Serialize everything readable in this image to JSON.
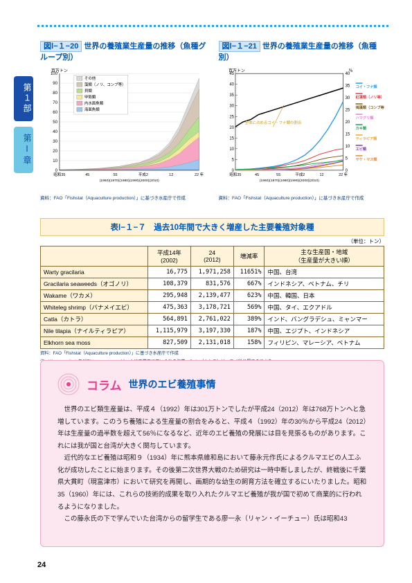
{
  "sideTabs": {
    "tab1": "第１部",
    "tab2": "第Ⅰ章"
  },
  "chart1": {
    "figNum": "図Ⅰ−１−20",
    "title": "世界の養殖業生産量の推移（魚種グループ別）",
    "yLabel": "百万トン",
    "yTicks": [
      "0",
      "10",
      "20",
      "30",
      "40",
      "50",
      "60",
      "70",
      "80",
      "90",
      "100"
    ],
    "xTicks": [
      "昭和35",
      "45",
      "55",
      "平成2",
      "12",
      "22 年"
    ],
    "xSub": "(1960)(1970)(1980)(1990)(2000)(2010)",
    "legend": [
      "その他",
      "藻類（ノリ、コンブ等）",
      "貝類",
      "甲殻類",
      "内水面魚類",
      "海面魚類"
    ],
    "legendColors": [
      "#d9d9d9",
      "#d6c6b5",
      "#b5e090",
      "#f9e89a",
      "#f6a6c2",
      "#9ec6f0"
    ],
    "series": [
      [
        0.5,
        0.7,
        1.0,
        1.5,
        2,
        3,
        4,
        6,
        8,
        12,
        18,
        28,
        45,
        70,
        95
      ],
      [
        0.5,
        0.7,
        1.0,
        1.5,
        2,
        3,
        4,
        6,
        8,
        11,
        16,
        25,
        40,
        62,
        84
      ],
      [
        0.4,
        0.6,
        0.8,
        1.2,
        1.6,
        2.3,
        3,
        4.5,
        6,
        8,
        12,
        18,
        28,
        42,
        55
      ],
      [
        0.3,
        0.5,
        0.7,
        1.0,
        1.3,
        1.8,
        2.4,
        3.5,
        4.5,
        6,
        9,
        14,
        22,
        32,
        40
      ],
      [
        0.3,
        0.45,
        0.6,
        0.9,
        1.2,
        1.6,
        2.1,
        3,
        3.8,
        5,
        7,
        11,
        17,
        26,
        34
      ],
      [
        0.1,
        0.15,
        0.2,
        0.3,
        0.4,
        0.55,
        0.7,
        1,
        1.3,
        1.7,
        2.4,
        3.5,
        5.5,
        8,
        11
      ]
    ],
    "src": "資料：FAO「Fishstat（Aquaculture production）」に基づき水産庁で作成"
  },
  "chart2": {
    "figNum": "図Ⅰ−１−21",
    "title": "世界の養殖業生産量の推移（魚種別）",
    "yLabel": "百万トン",
    "yRightLabel": "％",
    "yTicks": [
      "0",
      "5",
      "10",
      "15",
      "20",
      "25",
      "30",
      "35",
      "40",
      "45"
    ],
    "yRightTicks": [
      "0",
      "5",
      "10",
      "15",
      "20",
      "25",
      "30",
      "35",
      "40"
    ],
    "xTicks": [
      "昭和35",
      "45",
      "55",
      "平成2",
      "12",
      "22 年"
    ],
    "xSub": "(1960)(1970)(1980)(1990)(2000)(2010)",
    "annotation": "全体に占めるコイ・フナ類の割合",
    "legend": [
      {
        "label": "コイ・フナ類",
        "color": "#2e9de0"
      },
      {
        "label": "紅藻類（ノリ等）",
        "color": "#e64040"
      },
      {
        "label": "褐藻類（コンブ等）",
        "color": "#7a5c1e"
      },
      {
        "label": "ハマグリ類",
        "color": "#e07fd8"
      },
      {
        "label": "カキ類",
        "color": "#1aa04a"
      },
      {
        "label": "ティラピア類",
        "color": "#f4a71c"
      },
      {
        "label": "エビ類",
        "color": "#7a3fa8"
      },
      {
        "label": "サケ・マス類",
        "color": "#e0893a"
      }
    ],
    "series": {
      "carp": [
        0.3,
        0.4,
        0.6,
        0.9,
        1.3,
        1.8,
        2.5,
        3.5,
        5,
        7,
        10,
        14,
        19,
        25,
        32
      ],
      "red": [
        0.2,
        0.3,
        0.5,
        0.7,
        1,
        1.4,
        2,
        2.8,
        3.5,
        4.5,
        6,
        7.5,
        8.5,
        9.5,
        10
      ],
      "brown": [
        0.1,
        0.15,
        0.2,
        0.3,
        0.5,
        0.8,
        1.2,
        1.6,
        2.2,
        3,
        4,
        5,
        5.8,
        6.3,
        6.8
      ],
      "clam": [
        0.1,
        0.12,
        0.15,
        0.2,
        0.3,
        0.45,
        0.6,
        0.8,
        1.1,
        1.5,
        2.1,
        2.8,
        3.5,
        4.2,
        5
      ],
      "oyster": [
        0.3,
        0.4,
        0.5,
        0.7,
        0.9,
        1.1,
        1.4,
        1.7,
        2,
        2.5,
        3,
        3.4,
        3.8,
        4.2,
        4.5
      ],
      "tilapia": [
        0,
        0.02,
        0.05,
        0.08,
        0.12,
        0.18,
        0.25,
        0.35,
        0.5,
        0.8,
        1.2,
        1.8,
        2.5,
        3.3,
        4.2
      ],
      "shrimp": [
        0,
        0.01,
        0.02,
        0.04,
        0.08,
        0.15,
        0.25,
        0.4,
        0.6,
        1,
        1.5,
        2.1,
        2.8,
        3.5,
        4.2
      ],
      "salmon": [
        0,
        0,
        0.01,
        0.02,
        0.04,
        0.08,
        0.15,
        0.25,
        0.4,
        0.65,
        0.95,
        1.3,
        1.7,
        2.1,
        2.5
      ],
      "pct": [
        18,
        20,
        21,
        23,
        24,
        25,
        26,
        27,
        28,
        29,
        30,
        31,
        32,
        33,
        34
      ]
    },
    "src": "資料：FAO「Fishstat（Aquaculture production）」に基づき水産庁で作成"
  },
  "table": {
    "title": "表Ⅰ−１−７　過去10年間で大きく増産した主要養殖対象種",
    "unit": "（単位：トン）",
    "headers": [
      "",
      "平成14年(2002)",
      "24(2012)",
      "増減率",
      "主な生産国・地域（生産量が大きい順）"
    ],
    "rows": [
      [
        "Warty gracilaria",
        "16,775",
        "1,971,258",
        "11651%",
        "中国、台湾"
      ],
      [
        "Gracilaria seaweeds（オゴノリ）",
        "108,379",
        "831,576",
        "667%",
        "インドネシア、ベトナム、チリ"
      ],
      [
        "Wakame（ワカメ）",
        "295,948",
        "2,139,477",
        "623%",
        "中国、韓国、日本"
      ],
      [
        "Whiteleg shrimp（バナメイエビ）",
        "475,363",
        "3,178,721",
        "569%",
        "中国、タイ、エクアドル"
      ],
      [
        "Catla（カトラ）",
        "564,891",
        "2,761,022",
        "389%",
        "インド、バングラデシュ、ミャンマー"
      ],
      [
        "Nile tilapia（ナイルティラピア）",
        "1,115,979",
        "3,197,330",
        "187%",
        "中国、エジプト、インドネシア"
      ],
      [
        "Elkhorn sea moss",
        "827,509",
        "2,131,018",
        "158%",
        "フィリピン、マレーシア、ベトナム"
      ]
    ],
    "src1": "資料：FAO「Fishstat（Aquaculture production）」に基づき水産庁で作成",
    "src2": "注：Warty gracilaria及びElkhorn sea mossは、主に工業用に用いられる海藻。Catla（カトラ）は、コイ科に属する淡水魚。"
  },
  "column": {
    "badge": "コラム",
    "title": "世界のエビ養殖事情",
    "p1": "世界のエビ類生産量は、平成４（1992）年は301万トンでしたが平成24（2012）年は768万トンへと急増しています。このうち養殖による生産量の割合をみると、平成４（1992）年の30％から平成24（2012）年は生産量の過半数を超えて56％になるなど、近年のエビ養殖の発展には目を見張るものがあります。これには我が国と台湾が大きく関与しています。",
    "p2": "近代的なエビ養殖は昭和９（1934）年に熊本県維和島において藤永元作氏によるクルマエビの人工ふ化が成功したことに始まります。その後第二次世界大戦のため研究は一時中断しましたが、終戦後に千葉県大貫町（現富津市）において研究を再開し、画期的な幼生の飼育方法を確立するにいたりました。昭和35（1960）年には、これらの技術的成果を取り入れたクルマエビ養殖が我が国で初めて商業的に行われるようになりました。",
    "p3": "この藤永氏の下で学んでいた台湾からの留学生である廖一永（リャン・イーチュー）氏は昭和43"
  },
  "pageNum": "24"
}
